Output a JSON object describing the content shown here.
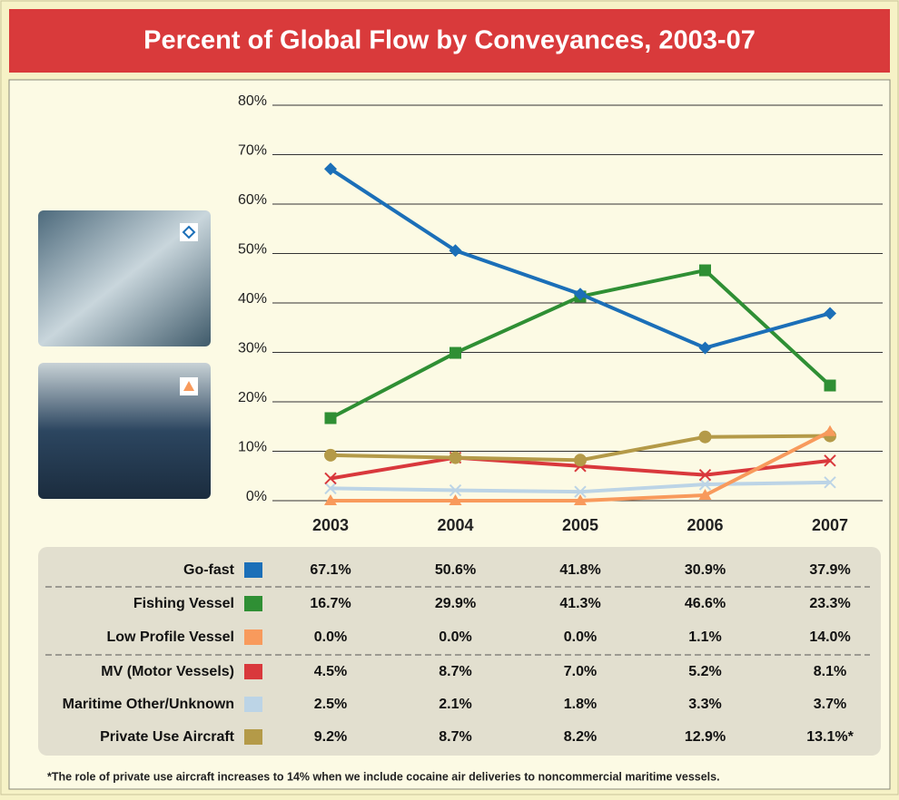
{
  "chart_data": {
    "type": "line",
    "title": "Percent of Global Flow by Conveyances, 2003-07",
    "categories": [
      "2003",
      "2004",
      "2005",
      "2006",
      "2007"
    ],
    "ylim": [
      0,
      80
    ],
    "yticks": [
      {
        "value": 0,
        "label": "0%"
      },
      {
        "value": 10,
        "label": "10%"
      },
      {
        "value": 20,
        "label": "20%"
      },
      {
        "value": 30,
        "label": "30%"
      },
      {
        "value": 40,
        "label": "40%"
      },
      {
        "value": 50,
        "label": "50%"
      },
      {
        "value": 60,
        "label": "60%"
      },
      {
        "value": 70,
        "label": "70%"
      },
      {
        "value": 80,
        "label": "80%"
      }
    ],
    "grid": true,
    "series": [
      {
        "name": "Go-fast",
        "color": "#1b6fb8",
        "marker": "diamond",
        "values": [
          67.1,
          50.6,
          41.8,
          30.9,
          37.9
        ],
        "value_labels": [
          "67.1%",
          "50.6%",
          "41.8%",
          "30.9%",
          "37.9%"
        ]
      },
      {
        "name": "Fishing Vessel",
        "color": "#2f8f34",
        "marker": "square",
        "values": [
          16.7,
          29.9,
          41.3,
          46.6,
          23.3
        ],
        "value_labels": [
          "16.7%",
          "29.9%",
          "41.3%",
          "46.6%",
          "23.3%"
        ]
      },
      {
        "name": "Low Profile Vessel",
        "color": "#f89a5c",
        "marker": "triangle",
        "values": [
          0.0,
          0.0,
          0.0,
          1.1,
          14.0
        ],
        "value_labels": [
          "0.0%",
          "0.0%",
          "0.0%",
          "1.1%",
          "14.0%"
        ]
      },
      {
        "name": "MV (Motor Vessels)",
        "color": "#d9383c",
        "marker": "x",
        "values": [
          4.5,
          8.7,
          7.0,
          5.2,
          8.1
        ],
        "value_labels": [
          "4.5%",
          "8.7%",
          "7.0%",
          "5.2%",
          "8.1%"
        ]
      },
      {
        "name": "Maritime Other/Unknown",
        "color": "#bcd4e6",
        "marker": "x",
        "values": [
          2.5,
          2.1,
          1.8,
          3.3,
          3.7
        ],
        "value_labels": [
          "2.5%",
          "2.1%",
          "1.8%",
          "3.3%",
          "3.7%"
        ]
      },
      {
        "name": "Private Use Aircraft",
        "color": "#b49a48",
        "marker": "circle",
        "values": [
          9.2,
          8.7,
          8.2,
          12.9,
          13.1
        ],
        "value_labels": [
          "9.2%",
          "8.7%",
          "8.2%",
          "12.9%",
          "13.1%*"
        ]
      }
    ],
    "footnote": "*The role of private use aircraft increases to 14% when we include cocaine air deliveries to noncommercial maritime vessels."
  }
}
